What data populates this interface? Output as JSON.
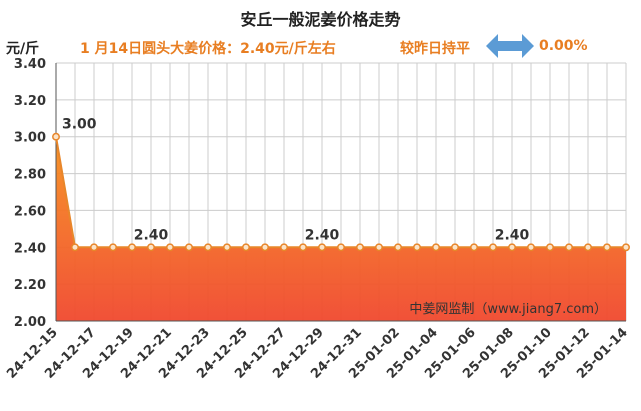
{
  "unit": "元/斤",
  "info": {
    "price_note": "1 月14日圆头大姜价格：2.40元/斤左右",
    "compare_label": "较昨日持平",
    "change_pct": "0.00%",
    "arrow_color": "#5b9bd5"
  },
  "watermark": "中姜网监制（www.jiang7.com）",
  "colors": {
    "line": "#e8862a",
    "marker_fill": "#fbe3c8",
    "area_top": "#f7911e",
    "area_bottom": "#f0482e",
    "grid": "#cccccc"
  },
  "chart_data": {
    "type": "area",
    "title": "安丘一般泥姜价格走势",
    "ylabel": "元/斤",
    "ylim": [
      2.0,
      3.4
    ],
    "y_ticks": [
      "2.00",
      "2.20",
      "2.40",
      "2.60",
      "2.80",
      "3.00",
      "3.20",
      "3.40"
    ],
    "x_tick_labels": [
      "24-12-15",
      "24-12-17",
      "24-12-19",
      "24-12-21",
      "24-12-23",
      "24-12-25",
      "24-12-27",
      "24-12-29",
      "24-12-31",
      "25-01-02",
      "25-01-04",
      "25-01-06",
      "25-01-08",
      "25-01-10",
      "25-01-12",
      "25-01-14"
    ],
    "x": [
      "24-12-15",
      "24-12-16",
      "24-12-17",
      "24-12-18",
      "24-12-19",
      "24-12-20",
      "24-12-21",
      "24-12-22",
      "24-12-23",
      "24-12-24",
      "24-12-25",
      "24-12-26",
      "24-12-27",
      "24-12-28",
      "24-12-29",
      "24-12-30",
      "24-12-31",
      "25-01-01",
      "25-01-02",
      "25-01-03",
      "25-01-04",
      "25-01-05",
      "25-01-06",
      "25-01-07",
      "25-01-08",
      "25-01-09",
      "25-01-10",
      "25-01-11",
      "25-01-12",
      "25-01-13",
      "25-01-14"
    ],
    "values": [
      3.0,
      2.4,
      2.4,
      2.4,
      2.4,
      2.4,
      2.4,
      2.4,
      2.4,
      2.4,
      2.4,
      2.4,
      2.4,
      2.4,
      2.4,
      2.4,
      2.4,
      2.4,
      2.4,
      2.4,
      2.4,
      2.4,
      2.4,
      2.4,
      2.4,
      2.4,
      2.4,
      2.4,
      2.4,
      2.4,
      2.4
    ],
    "data_labels": [
      {
        "x": "24-12-15",
        "text": "3.00"
      },
      {
        "x": "24-12-20",
        "text": "2.40"
      },
      {
        "x": "24-12-29",
        "text": "2.40"
      },
      {
        "x": "25-01-08",
        "text": "2.40"
      }
    ],
    "grid": true,
    "legend": "none"
  }
}
